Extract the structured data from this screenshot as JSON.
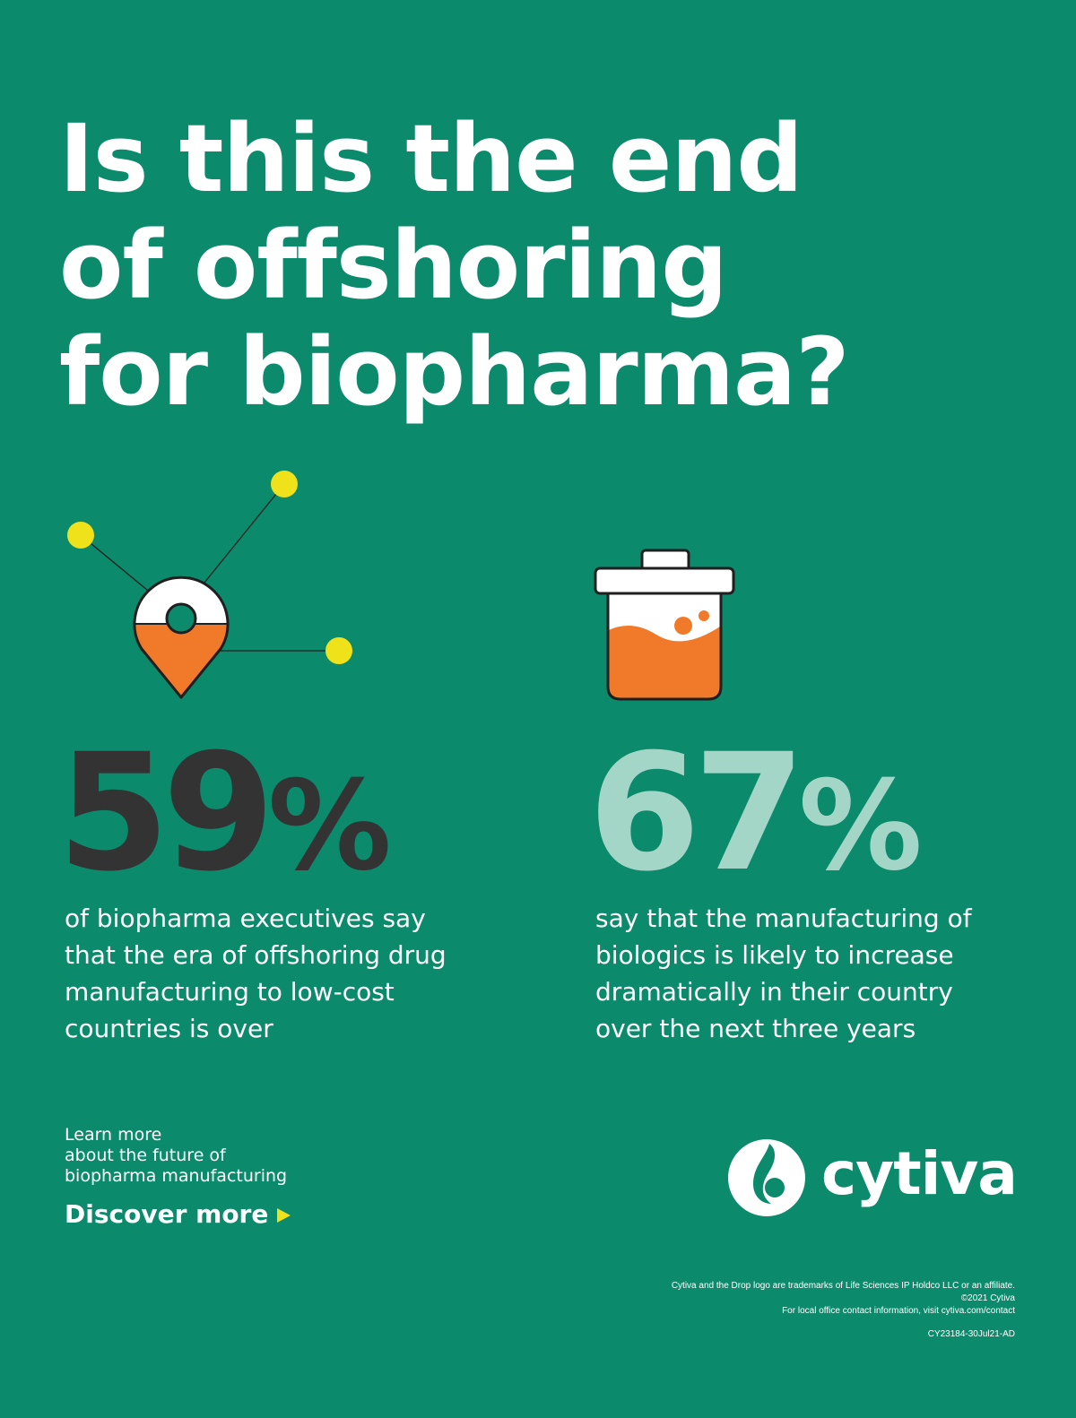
{
  "headline": {
    "lines": [
      "Is this the end",
      "of offshoring",
      "for biopharma?"
    ]
  },
  "colors": {
    "background": "#0b8a6c",
    "stat_dark": "#333333",
    "stat_light": "#a4d6c8",
    "accent_yellow": "#f0e21a",
    "accent_orange": "#f07a2a"
  },
  "icons": {
    "pin": "location-pin-network-icon",
    "jar": "specimen-jar-icon",
    "arrow": "play-arrow-icon",
    "logo": "cytiva-drop-logo"
  },
  "stats": [
    {
      "number": "59",
      "unit": "%",
      "text": "of biopharma executives say that the era of offshoring drug manufacturing to low-cost countries is over"
    },
    {
      "number": "67",
      "unit": "%",
      "text": "say that the manufacturing of biologics is likely to increase dramatically in their country over the next three years"
    }
  ],
  "cta": {
    "lines": [
      "Learn more",
      "about the future of",
      "biopharma manufacturing"
    ],
    "link_label": "Discover more"
  },
  "brand": {
    "name": "cytiva"
  },
  "legal": {
    "lines": [
      "Cytiva and the Drop logo are trademarks of Life Sciences IP Holdco LLC or an affiliate.",
      "©2021 Cytiva",
      "For local office contact information, visit cytiva.com/contact"
    ],
    "code": "CY23184-30Jul21-AD"
  }
}
